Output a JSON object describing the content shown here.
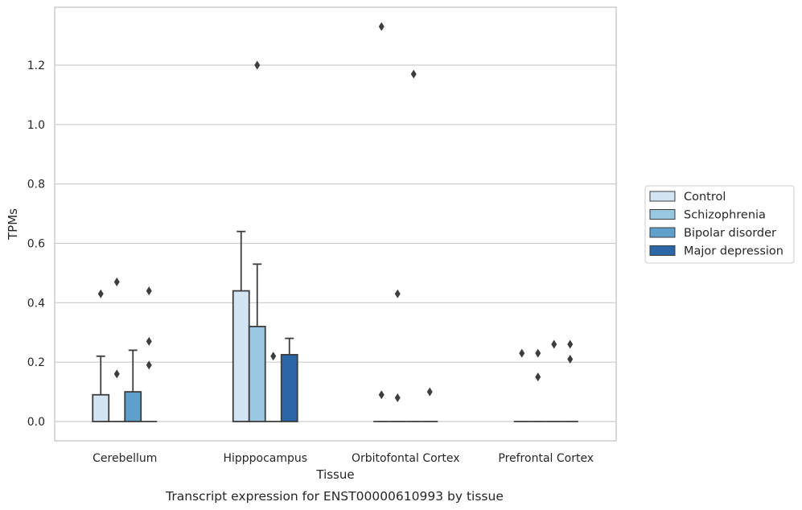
{
  "chart_data": {
    "type": "bar",
    "caption": "Transcript expression for ENST00000610993 by tissue",
    "xlabel": "Tissue",
    "ylabel": "TPMs",
    "ylim": [
      -0.065,
      1.395
    ],
    "yticks": [
      "0.0",
      "0.2",
      "0.4",
      "0.6",
      "0.8",
      "1.0",
      "1.2"
    ],
    "grid": true,
    "legend_position": "right",
    "categories": [
      "Cerebellum",
      "Hipppocampus",
      "Orbitofontal Cortex",
      "Prefrontal Cortex"
    ],
    "series": [
      {
        "name": "Control",
        "color": "#d3e4f3",
        "values": [
          0.09,
          0.44,
          0.0,
          0.0
        ],
        "err_upper": [
          0.22,
          0.64,
          null,
          null
        ],
        "outliers": [
          [
            0.43
          ],
          [],
          [
            1.33,
            0.09
          ],
          [
            0.23
          ]
        ]
      },
      {
        "name": "Schizophrenia",
        "color": "#9ac7e0",
        "values": [
          0.0,
          0.32,
          0.0,
          0.0
        ],
        "err_upper": [
          null,
          0.53,
          null,
          null
        ],
        "outliers": [
          [
            0.47,
            0.16
          ],
          [
            1.2
          ],
          [
            0.43,
            0.08
          ],
          [
            0.23,
            0.15
          ]
        ]
      },
      {
        "name": "Bipolar disorder",
        "color": "#5e9fcb",
        "values": [
          0.1,
          0.0,
          0.0,
          0.0
        ],
        "err_upper": [
          0.24,
          null,
          null,
          null
        ],
        "outliers": [
          [],
          [
            0.22
          ],
          [
            1.17
          ],
          [
            0.26
          ]
        ]
      },
      {
        "name": "Major depression",
        "color": "#2b67a6",
        "values": [
          0.0,
          0.225,
          0.0,
          0.0
        ],
        "err_upper": [
          null,
          0.28,
          null,
          null
        ],
        "outliers": [
          [
            0.44,
            0.27,
            0.19
          ],
          [],
          [
            0.1
          ],
          [
            0.26,
            0.21
          ]
        ]
      }
    ]
  }
}
